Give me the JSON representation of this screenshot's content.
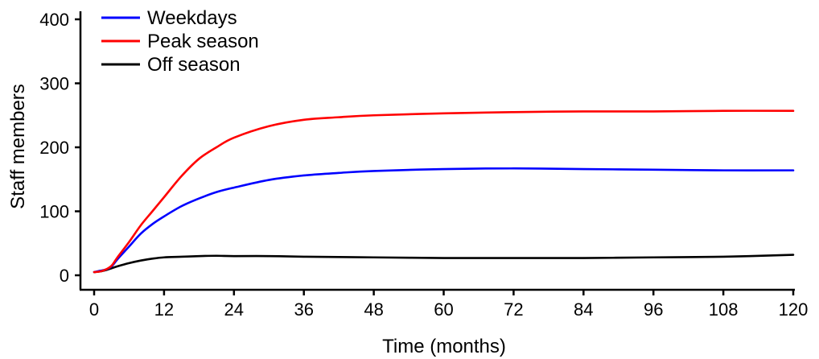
{
  "chart_data": {
    "type": "line",
    "title": "",
    "xlabel": "Time (months)",
    "ylabel": "Staff members",
    "xlim": [
      0,
      120
    ],
    "ylim": [
      0,
      420
    ],
    "xticks": [
      0,
      12,
      24,
      36,
      48,
      60,
      72,
      84,
      96,
      108,
      120
    ],
    "yticks": [
      0,
      100,
      200,
      300,
      400
    ],
    "grid": false,
    "legend_position": "top-left",
    "series": [
      {
        "name": "Weekdays",
        "color": "#0000ff",
        "x": [
          0,
          1,
          2,
          3,
          4,
          6,
          8,
          10,
          12,
          15,
          18,
          21,
          24,
          30,
          36,
          42,
          48,
          60,
          72,
          84,
          96,
          108,
          120
        ],
        "y": [
          5,
          7,
          9,
          14,
          25,
          45,
          65,
          80,
          92,
          108,
          120,
          130,
          137,
          149,
          156,
          160,
          163,
          166,
          167,
          166,
          165,
          164,
          164
        ]
      },
      {
        "name": "Peak season",
        "color": "#ff0000",
        "x": [
          0,
          1,
          2,
          3,
          4,
          6,
          8,
          10,
          12,
          15,
          18,
          21,
          24,
          30,
          36,
          42,
          48,
          60,
          72,
          84,
          96,
          108,
          120
        ],
        "y": [
          5,
          6,
          9,
          15,
          28,
          52,
          78,
          100,
          122,
          155,
          182,
          200,
          215,
          233,
          243,
          247,
          250,
          253,
          255,
          256,
          256,
          257,
          257
        ]
      },
      {
        "name": "Off season",
        "color": "#000000",
        "x": [
          0,
          1,
          2,
          3,
          4,
          6,
          8,
          10,
          12,
          15,
          18,
          21,
          24,
          30,
          36,
          48,
          60,
          72,
          84,
          96,
          108,
          120
        ],
        "y": [
          5,
          6,
          8,
          11,
          14,
          19,
          23,
          26,
          28,
          29,
          30,
          30.5,
          30,
          30,
          29,
          28,
          27,
          27,
          27,
          28,
          29,
          32
        ]
      }
    ]
  }
}
